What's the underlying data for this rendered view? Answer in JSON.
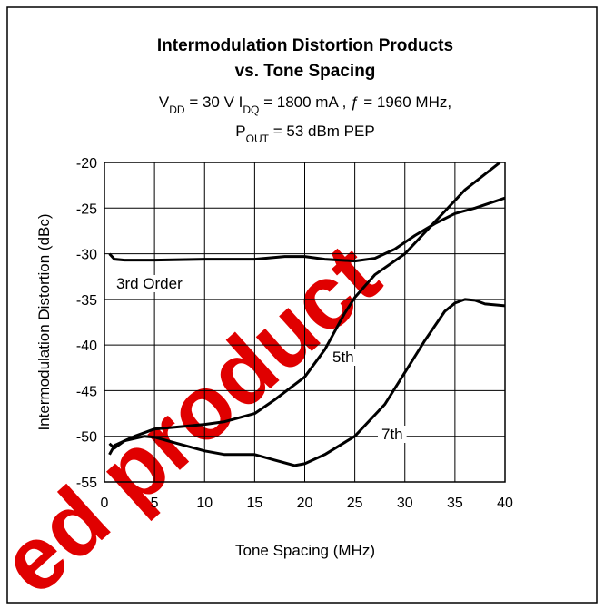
{
  "chart_data": {
    "type": "line",
    "title": [
      "Intermodulation Distortion Products",
      "vs. Tone Spacing"
    ],
    "subtitle": [
      [
        "V",
        "DD",
        " = 30 V I",
        "DQ",
        " = 1800 mA , ƒ = 1960 MHz,"
      ],
      [
        "P",
        "OUT",
        " = 53 dBm PEP"
      ]
    ],
    "x_label": "Tone Spacing (MHz)",
    "y_label": "Intermodulation Distortion (dBc)",
    "watermark": "ed product",
    "xlim": [
      0,
      40
    ],
    "ylim": [
      -55,
      -20
    ],
    "xticks": [
      0,
      5,
      10,
      15,
      20,
      25,
      30,
      35,
      40
    ],
    "yticks": [
      -20,
      -25,
      -30,
      -35,
      -40,
      -45,
      -50,
      -55
    ],
    "grid": true,
    "series": [
      {
        "name": "3rd Order",
        "color": "#000000",
        "x": [
          0.5,
          1,
          2,
          5,
          10,
          15,
          18,
          20,
          22,
          25,
          27,
          29,
          31,
          33,
          35,
          37,
          40
        ],
        "values": [
          -30,
          -30.6,
          -30.7,
          -30.7,
          -30.6,
          -30.6,
          -30.3,
          -30.3,
          -30.6,
          -30.8,
          -30.5,
          -29.5,
          -28,
          -26.7,
          -25.6,
          -25,
          -23.9
        ]
      },
      {
        "name": "5th",
        "color": "#000000",
        "x": [
          0.5,
          1,
          2,
          3,
          5,
          7,
          10,
          12,
          15,
          17,
          20,
          22,
          24,
          25,
          27,
          30,
          33,
          36,
          39.5
        ],
        "values": [
          -52,
          -51,
          -50.5,
          -50,
          -49.2,
          -49,
          -48.7,
          -48.4,
          -47.5,
          -46,
          -43.5,
          -40.5,
          -36.5,
          -34.8,
          -32.3,
          -30,
          -26.5,
          -23,
          -20
        ]
      },
      {
        "name": "7th",
        "color": "#000000",
        "x": [
          0.5,
          1,
          2,
          4,
          5,
          7,
          10,
          12,
          15,
          17,
          19,
          20,
          22,
          25,
          28,
          30,
          32,
          34,
          35,
          36,
          37,
          38,
          40
        ],
        "values": [
          -50.8,
          -51.3,
          -50.5,
          -50,
          -50.1,
          -50.7,
          -51.6,
          -52,
          -52,
          -52.6,
          -53.2,
          -53,
          -52,
          -50,
          -46.5,
          -43,
          -39.5,
          -36.3,
          -35.4,
          -35,
          -35.1,
          -35.5,
          -35.7
        ]
      }
    ]
  }
}
